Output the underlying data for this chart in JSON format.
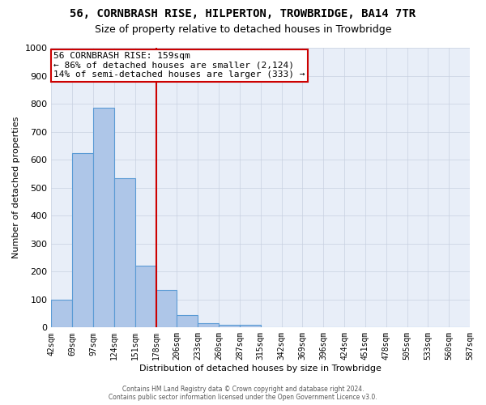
{
  "title": "56, CORNBRASH RISE, HILPERTON, TROWBRIDGE, BA14 7TR",
  "subtitle": "Size of property relative to detached houses in Trowbridge",
  "xlabel": "Distribution of detached houses by size in Trowbridge",
  "ylabel": "Number of detached properties",
  "bar_values": [
    100,
    625,
    785,
    535,
    220,
    135,
    45,
    15,
    10,
    10,
    0,
    0,
    0,
    0,
    0,
    0,
    0,
    0,
    0,
    0
  ],
  "categories": [
    "42sqm",
    "69sqm",
    "97sqm",
    "124sqm",
    "151sqm",
    "178sqm",
    "206sqm",
    "233sqm",
    "260sqm",
    "287sqm",
    "315sqm",
    "342sqm",
    "369sqm",
    "396sqm",
    "424sqm",
    "451sqm",
    "478sqm",
    "505sqm",
    "533sqm",
    "560sqm",
    "587sqm"
  ],
  "bar_color": "#aec6e8",
  "bar_edge_color": "#5b9bd5",
  "red_line_x": 4.5,
  "ylim": [
    0,
    1000
  ],
  "yticks": [
    0,
    100,
    200,
    300,
    400,
    500,
    600,
    700,
    800,
    900,
    1000
  ],
  "annotation_title": "56 CORNBRASH RISE: 159sqm",
  "annotation_line1": "← 86% of detached houses are smaller (2,124)",
  "annotation_line2": "14% of semi-detached houses are larger (333) →",
  "annotation_box_color": "#ffffff",
  "annotation_box_edge_color": "#cc0000",
  "footer_line1": "Contains HM Land Registry data © Crown copyright and database right 2024.",
  "footer_line2": "Contains public sector information licensed under the Open Government Licence v3.0.",
  "background_color": "#e8eef8",
  "title_fontsize": 10,
  "subtitle_fontsize": 9
}
